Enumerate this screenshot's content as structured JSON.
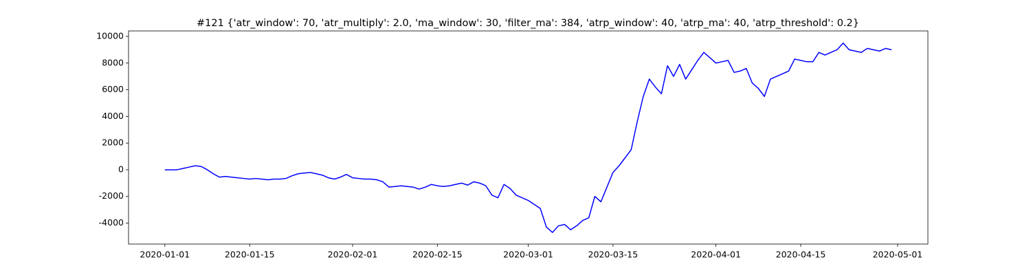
{
  "chart_data": {
    "type": "line",
    "title": "#121 {'atr_window': 70, 'atr_multiply': 2.0, 'ma_window': 30, 'filter_ma': 384, 'atrp_window': 40, 'atrp_ma': 40, 'atrp_threshold': 0.2}",
    "x": [
      "2020-01-01",
      "2020-01-02",
      "2020-01-03",
      "2020-01-04",
      "2020-01-05",
      "2020-01-06",
      "2020-01-07",
      "2020-01-08",
      "2020-01-09",
      "2020-01-10",
      "2020-01-11",
      "2020-01-12",
      "2020-01-13",
      "2020-01-14",
      "2020-01-15",
      "2020-01-16",
      "2020-01-17",
      "2020-01-18",
      "2020-01-19",
      "2020-01-20",
      "2020-01-21",
      "2020-01-22",
      "2020-01-23",
      "2020-01-24",
      "2020-01-25",
      "2020-01-26",
      "2020-01-27",
      "2020-01-28",
      "2020-01-29",
      "2020-01-30",
      "2020-01-31",
      "2020-02-01",
      "2020-02-02",
      "2020-02-03",
      "2020-02-04",
      "2020-02-05",
      "2020-02-06",
      "2020-02-07",
      "2020-02-08",
      "2020-02-09",
      "2020-02-10",
      "2020-02-11",
      "2020-02-12",
      "2020-02-13",
      "2020-02-14",
      "2020-02-15",
      "2020-02-16",
      "2020-02-17",
      "2020-02-18",
      "2020-02-19",
      "2020-02-20",
      "2020-02-21",
      "2020-02-22",
      "2020-02-23",
      "2020-02-24",
      "2020-02-25",
      "2020-02-26",
      "2020-02-27",
      "2020-02-28",
      "2020-02-29",
      "2020-03-01",
      "2020-03-02",
      "2020-03-03",
      "2020-03-04",
      "2020-03-05",
      "2020-03-06",
      "2020-03-07",
      "2020-03-08",
      "2020-03-09",
      "2020-03-10",
      "2020-03-11",
      "2020-03-12",
      "2020-03-13",
      "2020-03-14",
      "2020-03-15",
      "2020-03-16",
      "2020-03-17",
      "2020-03-18",
      "2020-03-19",
      "2020-03-20",
      "2020-03-21",
      "2020-03-22",
      "2020-03-23",
      "2020-03-24",
      "2020-03-25",
      "2020-03-26",
      "2020-03-27",
      "2020-03-28",
      "2020-03-29",
      "2020-03-30",
      "2020-03-31",
      "2020-04-01",
      "2020-04-02",
      "2020-04-03",
      "2020-04-04",
      "2020-04-05",
      "2020-04-06",
      "2020-04-07",
      "2020-04-08",
      "2020-04-09",
      "2020-04-10",
      "2020-04-11",
      "2020-04-12",
      "2020-04-13",
      "2020-04-14",
      "2020-04-15",
      "2020-04-16",
      "2020-04-17",
      "2020-04-18",
      "2020-04-19",
      "2020-04-20",
      "2020-04-21",
      "2020-04-22",
      "2020-04-23",
      "2020-04-24",
      "2020-04-25",
      "2020-04-26",
      "2020-04-27",
      "2020-04-28",
      "2020-04-29",
      "2020-04-30"
    ],
    "series": [
      {
        "color": "#0000ff",
        "values": [
          0,
          0,
          0,
          100,
          200,
          300,
          250,
          0,
          -300,
          -550,
          -500,
          -550,
          -600,
          -650,
          -700,
          -650,
          -700,
          -750,
          -700,
          -700,
          -650,
          -450,
          -300,
          -250,
          -200,
          -300,
          -400,
          -600,
          -700,
          -550,
          -350,
          -600,
          -650,
          -700,
          -700,
          -750,
          -900,
          -1300,
          -1250,
          -1200,
          -1250,
          -1300,
          -1450,
          -1300,
          -1100,
          -1200,
          -1250,
          -1200,
          -1100,
          -1000,
          -1150,
          -900,
          -1000,
          -1200,
          -1900,
          -2100,
          -1100,
          -1400,
          -1900,
          -2100,
          -2300,
          -2600,
          -2900,
          -4300,
          -4700,
          -4200,
          -4100,
          -4500,
          -4200,
          -3800,
          -3600,
          -2000,
          -2400,
          -1300,
          -200,
          300,
          900,
          1500,
          3600,
          5500,
          6800,
          6200,
          5700,
          7800,
          7000,
          7900,
          6800,
          7500,
          8200,
          8800,
          8400,
          8000,
          8100,
          8200,
          7300,
          7400,
          7600,
          6500,
          6100,
          5500,
          6800,
          7000,
          7200,
          7400,
          8300,
          8200,
          8100,
          8100,
          8800,
          8600,
          8800,
          9000,
          9500,
          9000,
          8900,
          8800,
          9100,
          9000,
          8900,
          9100,
          9000
        ]
      }
    ],
    "xlim": [
      "2019-12-26",
      "2020-05-06"
    ],
    "xticks": [
      "2020-01-01",
      "2020-01-15",
      "2020-02-01",
      "2020-02-15",
      "2020-03-01",
      "2020-03-15",
      "2020-04-01",
      "2020-04-15",
      "2020-05-01"
    ],
    "ylim": [
      -5570,
      10410
    ],
    "yticks": [
      -4000,
      -2000,
      0,
      2000,
      4000,
      6000,
      8000,
      10000
    ]
  }
}
